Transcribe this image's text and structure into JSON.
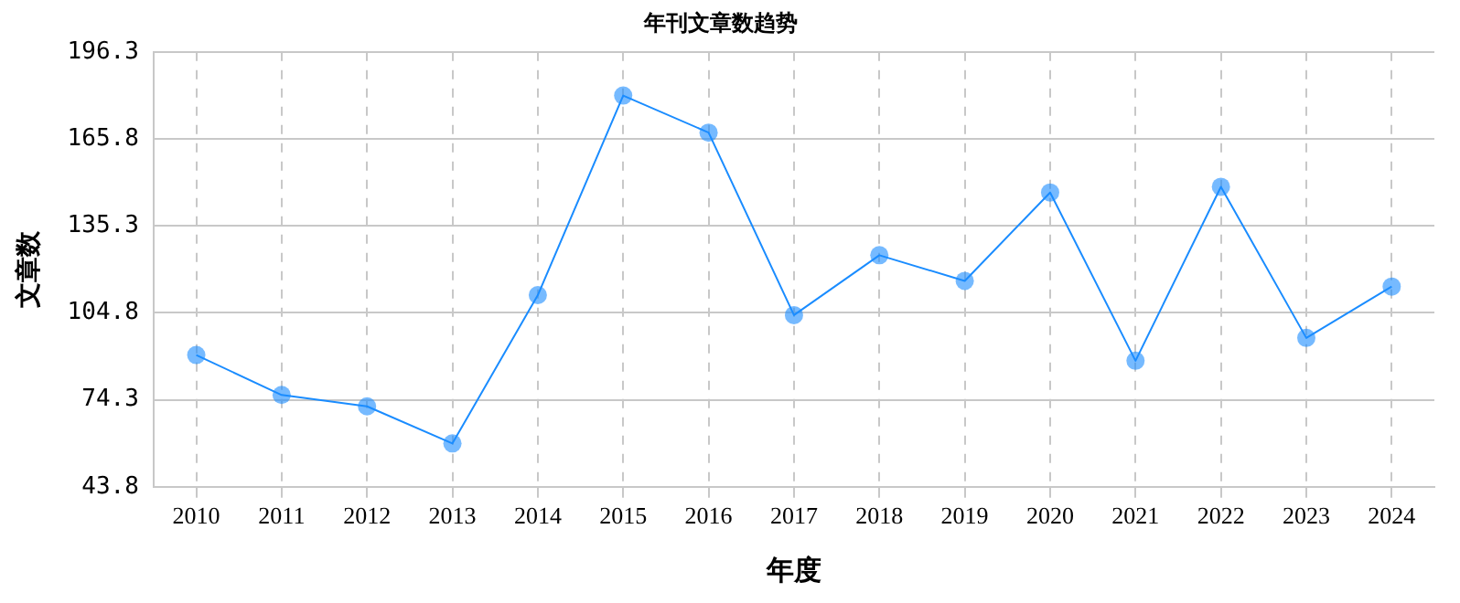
{
  "chart_data": {
    "type": "line",
    "title": "年刊文章数趋势",
    "xlabel": "年度",
    "ylabel": "文章数",
    "categories": [
      "2010",
      "2011",
      "2012",
      "2013",
      "2014",
      "2015",
      "2016",
      "2017",
      "2018",
      "2019",
      "2020",
      "2021",
      "2022",
      "2023",
      "2024"
    ],
    "series": [
      {
        "color": "#1a8cff",
        "values": [
          90,
          76,
          72,
          59,
          111,
          181,
          168,
          104,
          125,
          116,
          147,
          88,
          149,
          96,
          114
        ]
      }
    ],
    "ylim": [
      43.8,
      196.3
    ],
    "yticks": [
      43.8,
      74.3,
      104.8,
      135.3,
      165.8,
      196.3
    ],
    "grid": true,
    "marker": "circle",
    "line_style": "solid",
    "legend": false
  }
}
